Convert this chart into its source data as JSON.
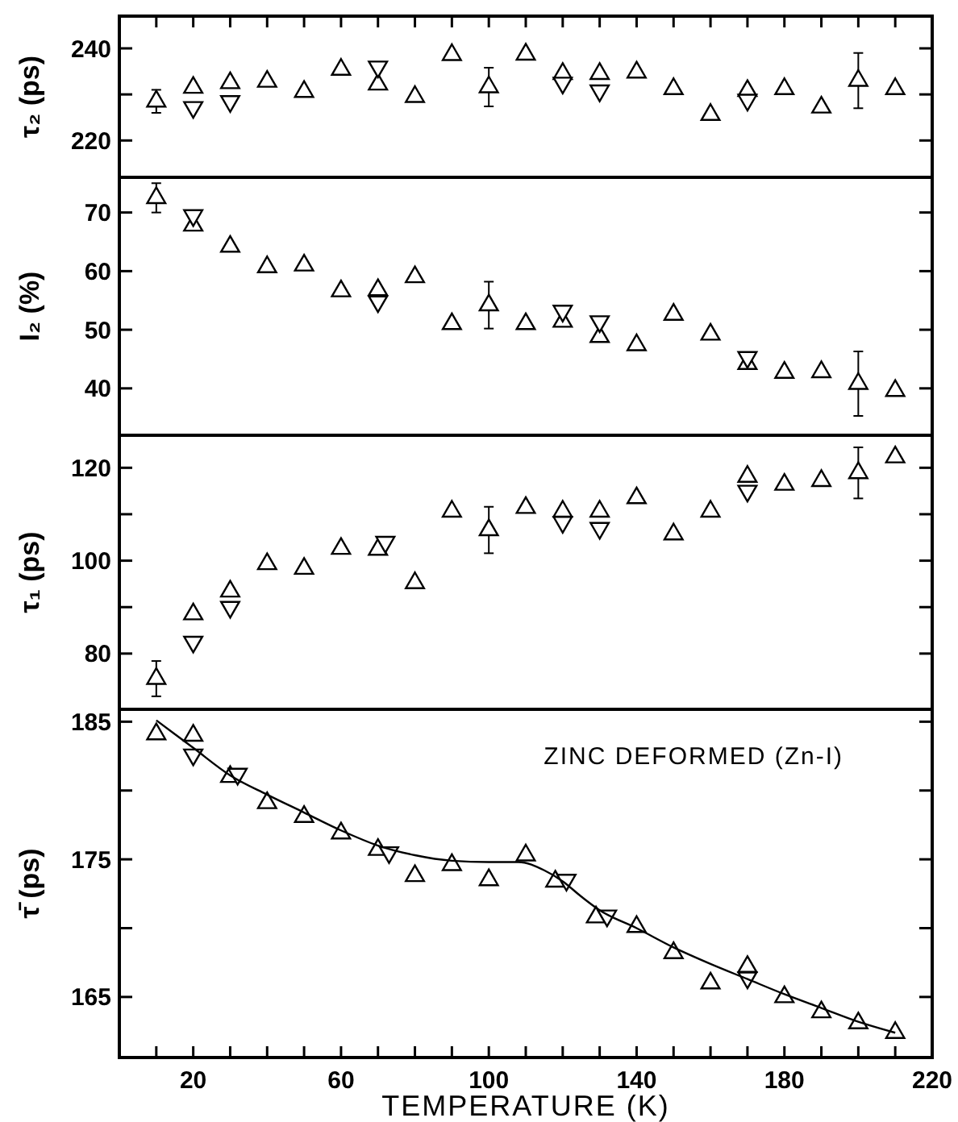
{
  "chart_data": [
    {
      "type": "scatter",
      "ylabel": "τ₂ (ps)",
      "xlim": [
        0,
        220
      ],
      "ylim": [
        212,
        247
      ],
      "yticks": [
        220,
        {
          "value": 230,
          "label": null
        },
        240
      ],
      "tick_labels": "y",
      "xticks": [
        {
          "value": 10,
          "label": null
        },
        {
          "value": 20,
          "label": null
        },
        {
          "value": 30,
          "label": null
        },
        {
          "value": 40,
          "label": null
        },
        {
          "value": 50,
          "label": null
        },
        {
          "value": 60,
          "label": null
        },
        {
          "value": 70,
          "label": null
        },
        {
          "value": 80,
          "label": null
        },
        {
          "value": 90,
          "label": null
        },
        {
          "value": 100,
          "label": null
        },
        {
          "value": 110,
          "label": null
        },
        {
          "value": 120,
          "label": null
        },
        {
          "value": 130,
          "label": null
        },
        {
          "value": 140,
          "label": null
        },
        {
          "value": 150,
          "label": null
        },
        {
          "value": 160,
          "label": null
        },
        {
          "value": 170,
          "label": null
        },
        {
          "value": 180,
          "label": null
        },
        {
          "value": 190,
          "label": null
        },
        {
          "value": 200,
          "label": null
        },
        {
          "value": 210,
          "label": null
        }
      ],
      "series": [
        {
          "color": "#000000",
          "marker": "triangle",
          "x": [
            10,
            20,
            30,
            40,
            50,
            60,
            70,
            80,
            90,
            100,
            110,
            120,
            130,
            140,
            150,
            160,
            170,
            180,
            190,
            200,
            210
          ],
          "values": [
            228.5,
            231.5,
            232.5,
            232.8,
            230.6,
            235.4,
            232.2,
            229.5,
            238.6,
            231.6,
            238.7,
            234.5,
            234.5,
            234.8,
            231.2,
            225.6,
            230.8,
            231.2,
            227.2,
            233,
            231.2
          ],
          "errors": [
            2.5,
            null,
            null,
            null,
            null,
            null,
            null,
            null,
            null,
            4.2,
            null,
            null,
            null,
            null,
            null,
            null,
            null,
            null,
            null,
            6,
            null
          ]
        },
        {
          "color": "#000000",
          "marker": "triangle-down",
          "x": [
            20,
            30,
            70,
            120,
            130,
            170
          ],
          "values": [
            227.2,
            228.5,
            236,
            232.5,
            230.8,
            228.8
          ]
        }
      ]
    },
    {
      "type": "scatter",
      "ylabel": "I₂ (%)",
      "xlim": [
        0,
        220
      ],
      "ylim": [
        32,
        76
      ],
      "yticks": [
        40,
        50,
        60,
        70
      ],
      "tick_labels": "y",
      "series": [
        {
          "color": "#000000",
          "marker": "triangle",
          "x": [
            10,
            20,
            30,
            40,
            50,
            60,
            70,
            80,
            90,
            100,
            110,
            120,
            130,
            140,
            150,
            160,
            170,
            180,
            190,
            200,
            210
          ],
          "values": [
            72.5,
            67.8,
            64.2,
            60.7,
            61,
            56.6,
            56.8,
            59,
            51,
            54.2,
            51,
            51.4,
            48.8,
            47.4,
            52.6,
            49.2,
            44.2,
            42.7,
            42.8,
            40.8,
            39.6
          ],
          "errors": [
            2.5,
            null,
            null,
            null,
            null,
            null,
            null,
            null,
            null,
            4,
            null,
            null,
            null,
            null,
            null,
            null,
            null,
            null,
            null,
            5.5,
            null
          ]
        },
        {
          "color": "#000000",
          "marker": "triangle-down",
          "x": [
            20,
            70,
            120,
            130,
            170
          ],
          "values": [
            69.5,
            54.8,
            53.2,
            51.4,
            45.3
          ]
        }
      ]
    },
    {
      "type": "scatter",
      "ylabel": "τ₁ (ps)",
      "xlim": [
        0,
        220
      ],
      "ylim": [
        68,
        127
      ],
      "yticks": [
        80,
        {
          "value": 90,
          "label": null
        },
        100,
        {
          "value": 110,
          "label": null
        },
        120
      ],
      "tick_labels": "y",
      "series": [
        {
          "color": "#000000",
          "marker": "triangle",
          "x": [
            10,
            20,
            30,
            40,
            50,
            60,
            70,
            80,
            90,
            100,
            110,
            120,
            130,
            140,
            150,
            160,
            170,
            180,
            190,
            200,
            210
          ],
          "values": [
            74.6,
            88.5,
            93.4,
            99.3,
            98.3,
            102.6,
            102.4,
            95.2,
            110.6,
            106.6,
            111.4,
            110.6,
            110.6,
            113.5,
            105.7,
            110.6,
            118.1,
            116.4,
            117.2,
            118.9,
            122.3
          ],
          "errors": [
            3.8,
            null,
            null,
            null,
            null,
            null,
            null,
            null,
            null,
            5,
            null,
            null,
            null,
            null,
            null,
            null,
            null,
            null,
            null,
            5.5,
            null
          ]
        },
        {
          "color": "#000000",
          "marker": "triangle-down",
          "x": [
            20,
            30,
            72,
            120,
            130,
            170
          ],
          "values": [
            82.5,
            90,
            104,
            108.3,
            107,
            115
          ]
        }
      ]
    },
    {
      "type": "scatter",
      "ylabel": "τ̄ (ps)",
      "xlabel": "TEMPERATURE (K)",
      "annotations": [
        "ZINC DEFORMED (Zn-I)"
      ],
      "xlim": [
        0,
        220
      ],
      "ylim": [
        160.6,
        185.9
      ],
      "yticks": [
        165,
        {
          "value": 170,
          "label": null
        },
        175,
        {
          "value": 180,
          "label": null
        },
        185
      ],
      "xticks": [
        {
          "value": 10,
          "label": null
        },
        20,
        {
          "value": 30,
          "label": null
        },
        {
          "value": 40,
          "label": null
        },
        {
          "value": 50,
          "label": null
        },
        60,
        {
          "value": 70,
          "label": null
        },
        {
          "value": 80,
          "label": null
        },
        {
          "value": 90,
          "label": null
        },
        100,
        {
          "value": 110,
          "label": null
        },
        {
          "value": 120,
          "label": null
        },
        {
          "value": 130,
          "label": null
        },
        140,
        {
          "value": 150,
          "label": null
        },
        {
          "value": 160,
          "label": null
        },
        {
          "value": 170,
          "label": null
        },
        180,
        {
          "value": 190,
          "label": null
        },
        {
          "value": 200,
          "label": null
        },
        {
          "value": 210,
          "label": null
        },
        220
      ],
      "series": [
        {
          "color": "#000000",
          "marker": "triangle",
          "x": [
            10,
            20,
            30,
            40,
            50,
            60,
            70,
            80,
            90,
            100,
            110,
            118,
            129,
            140,
            150,
            160,
            170,
            180,
            190,
            200,
            210
          ],
          "values": [
            184.1,
            184,
            181,
            179.1,
            178.1,
            176.9,
            175.7,
            173.8,
            174.6,
            173.5,
            175.3,
            173.4,
            170.8,
            170.1,
            168.2,
            166,
            167.2,
            165,
            163.9,
            163.1,
            162.4
          ]
        },
        {
          "color": "#000000",
          "marker": "triangle-down",
          "x": [
            20,
            32,
            73,
            121,
            132,
            170
          ],
          "values": [
            182.6,
            181.2,
            175.5,
            173.5,
            170.9,
            166.4
          ]
        },
        {
          "type": "line",
          "color": "#000000",
          "marker": "none",
          "line_style": "solid",
          "x": [
            10,
            20,
            30,
            40,
            50,
            60,
            70,
            80,
            90,
            100,
            108,
            115,
            120,
            125,
            130,
            140,
            150,
            160,
            170,
            180,
            190,
            200,
            210
          ],
          "values": [
            185.1,
            183.1,
            181.1,
            179.7,
            178.4,
            177.1,
            176,
            175.3,
            174.9,
            174.8,
            174.8,
            174.2,
            173.4,
            172.3,
            171.3,
            170,
            168.6,
            167.4,
            166.3,
            165.2,
            164.2,
            163.2,
            162.4
          ]
        }
      ]
    }
  ]
}
